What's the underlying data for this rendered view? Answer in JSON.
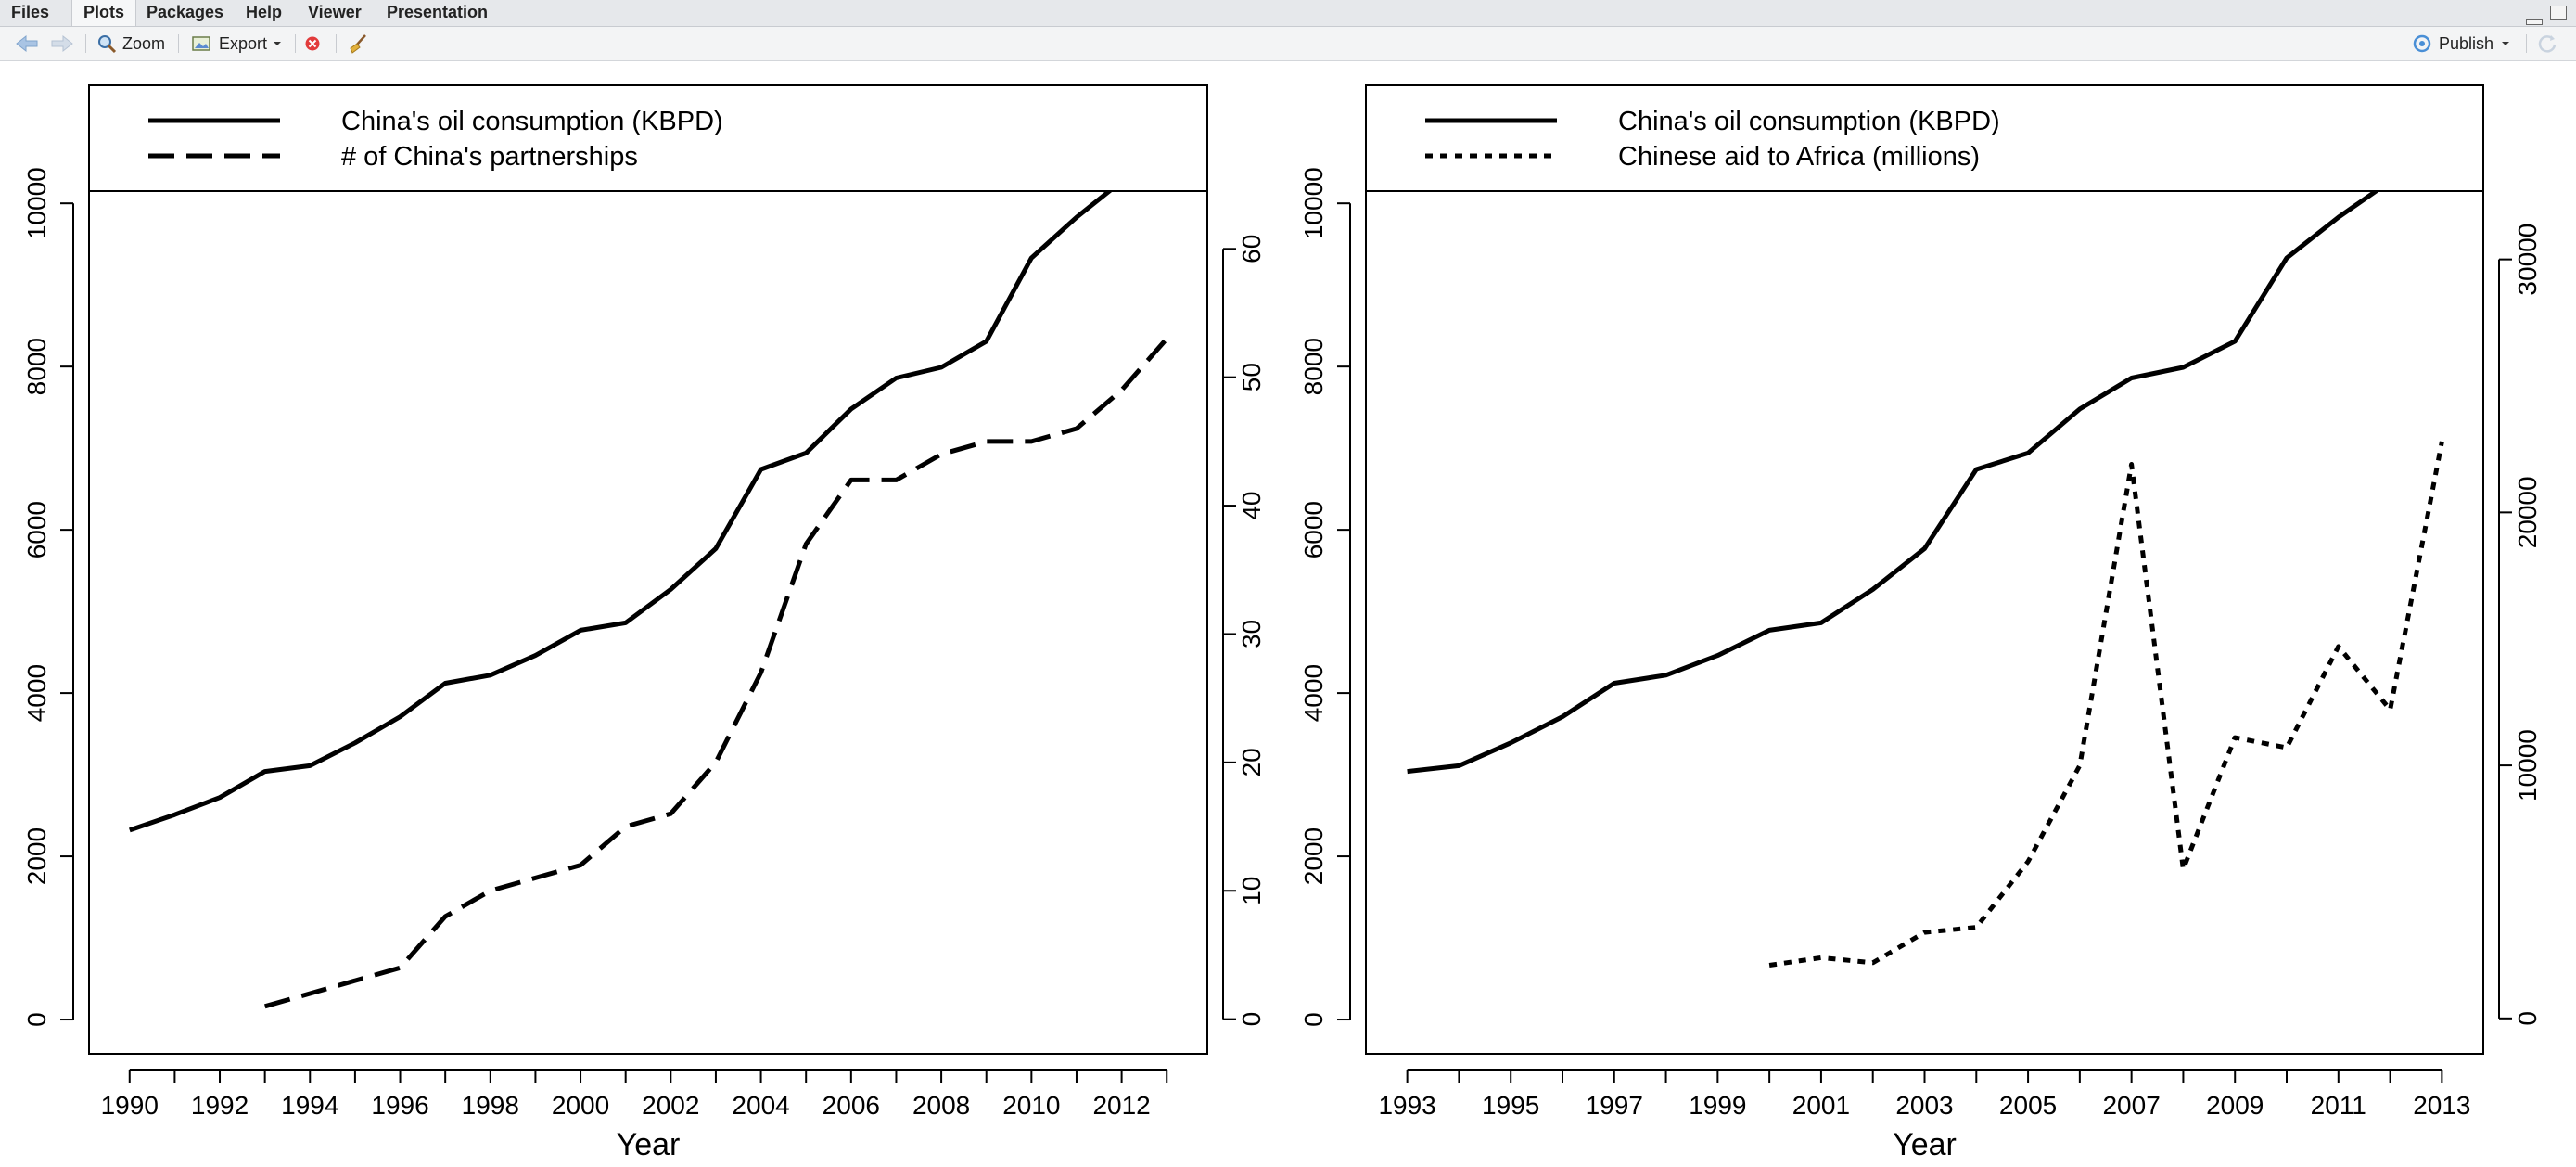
{
  "tabs": [
    {
      "label": "Files",
      "active": false
    },
    {
      "label": "Plots",
      "active": true
    },
    {
      "label": "Packages",
      "active": false
    },
    {
      "label": "Help",
      "active": false
    },
    {
      "label": "Viewer",
      "active": false
    },
    {
      "label": "Presentation",
      "active": false
    }
  ],
  "toolbar": {
    "back_icon": "arrow-left-icon",
    "forward_icon": "arrow-right-icon",
    "zoom_label": "Zoom",
    "export_label": "Export",
    "remove_icon": "remove-plot-icon",
    "clear_icon": "broom-icon",
    "publish_label": "Publish",
    "refresh_icon": "refresh-icon"
  },
  "chart_data": [
    {
      "type": "line",
      "title": "",
      "xlabel": "Year",
      "ylabel": "",
      "xlim": [
        1989.1,
        2013.9
      ],
      "ylim": [
        -420,
        10150
      ],
      "y2lim": [
        -2.7,
        64.5
      ],
      "x_ticks": [
        1990,
        1992,
        1994,
        1996,
        1998,
        2000,
        2002,
        2004,
        2006,
        2008,
        2010,
        2012
      ],
      "x_minor_ticks": [
        1991,
        1993,
        1995,
        1997,
        1999,
        2001,
        2003,
        2005,
        2007,
        2009,
        2011,
        2013
      ],
      "y_ticks": [
        0,
        2000,
        4000,
        6000,
        8000,
        10000
      ],
      "y2_ticks": [
        0,
        10,
        20,
        30,
        40,
        50,
        60
      ],
      "legend_position": "top",
      "series": [
        {
          "name": "China's oil consumption (KBPD)",
          "axis": "left",
          "dash": "solid",
          "x": [
            1990,
            1991,
            1992,
            1993,
            1994,
            1995,
            1996,
            1997,
            1998,
            1999,
            2000,
            2001,
            2002,
            2003,
            2004,
            2005,
            2006,
            2007,
            2008,
            2009,
            2010,
            2011,
            2012
          ],
          "values": [
            2320,
            2510,
            2720,
            3040,
            3110,
            3390,
            3710,
            4120,
            4220,
            4460,
            4770,
            4860,
            5270,
            5770,
            6740,
            6940,
            7480,
            7860,
            7990,
            8310,
            9330,
            9830,
            10270
          ]
        },
        {
          "name": "# of China's partnerships",
          "axis": "right",
          "dash": "longdash",
          "x": [
            1993,
            1994,
            1995,
            1996,
            1997,
            1998,
            1999,
            2000,
            2001,
            2002,
            2003,
            2004,
            2005,
            2006,
            2007,
            2008,
            2009,
            2010,
            2011,
            2012,
            2013
          ],
          "values": [
            1,
            2,
            3,
            4,
            8,
            10,
            11,
            12,
            15,
            16,
            20,
            27,
            37,
            42,
            42,
            44,
            45,
            45,
            46,
            49,
            53
          ]
        }
      ]
    },
    {
      "type": "line",
      "title": "",
      "xlabel": "Year",
      "ylabel": "",
      "xlim": [
        1992.2,
        2013.8
      ],
      "ylim": [
        -420,
        10150
      ],
      "y2lim": [
        -1400,
        32700
      ],
      "x_ticks": [
        1993,
        1995,
        1997,
        1999,
        2001,
        2003,
        2005,
        2007,
        2009,
        2011,
        2013
      ],
      "x_minor_ticks": [
        1994,
        1996,
        1998,
        2000,
        2002,
        2004,
        2006,
        2008,
        2010,
        2012
      ],
      "y_ticks": [
        0,
        2000,
        4000,
        6000,
        8000,
        10000
      ],
      "y2_ticks": [
        0,
        10000,
        20000,
        30000
      ],
      "legend_position": "top",
      "series": [
        {
          "name": "China's oil consumption (KBPD)",
          "axis": "left",
          "dash": "solid",
          "x": [
            1993,
            1994,
            1995,
            1996,
            1997,
            1998,
            1999,
            2000,
            2001,
            2002,
            2003,
            2004,
            2005,
            2006,
            2007,
            2008,
            2009,
            2010,
            2011,
            2012
          ],
          "values": [
            3040,
            3110,
            3390,
            3710,
            4120,
            4220,
            4460,
            4770,
            4860,
            5270,
            5770,
            6740,
            6940,
            7480,
            7860,
            7990,
            8310,
            9330,
            9830,
            10270
          ]
        },
        {
          "name": "Chinese aid to Africa (millions)",
          "axis": "right",
          "dash": "dotted",
          "x": [
            2000,
            2001,
            2002,
            2003,
            2004,
            2005,
            2006,
            2007,
            2008,
            2009,
            2010,
            2011,
            2012,
            2013
          ],
          "values": [
            2100,
            2400,
            2200,
            3400,
            3600,
            6200,
            10000,
            21900,
            5900,
            11100,
            10700,
            14700,
            12200,
            22800
          ]
        }
      ]
    }
  ]
}
